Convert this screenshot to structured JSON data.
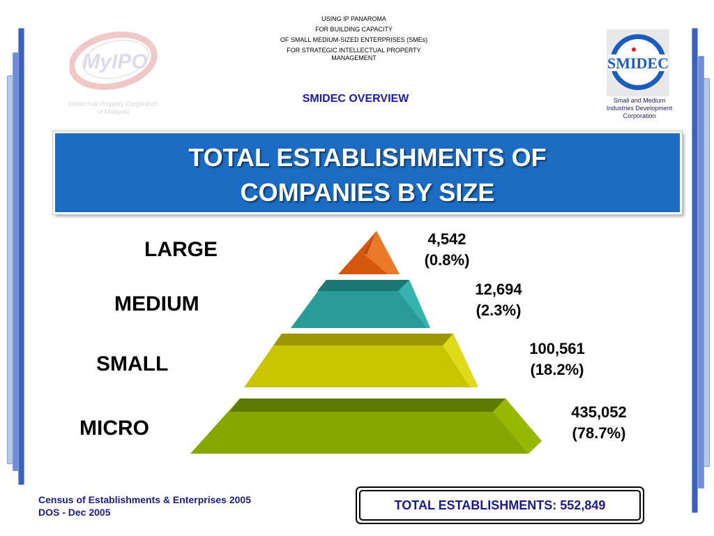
{
  "header": {
    "lines": [
      "USING IP PANAROMA",
      "FOR BUILDING CAPACITY",
      "OF SMALL MEDIUM-SIZED ENTERPRISES (SMEs)",
      "FOR STRATEGIC INTELLECTUAL PROPERTY MANAGEMENT"
    ],
    "section": "SMIDEC OVERVIEW"
  },
  "left_logo": {
    "wordmark": "MyIPO",
    "caption_line1": "Intellectual Property Corporation",
    "caption_line2": "of Malaysia"
  },
  "right_logo": {
    "wordmark": "SMIDEC",
    "caption_line1": "Small and Medium",
    "caption_line2": "Industries Development",
    "caption_line3": "Corporation"
  },
  "banner": {
    "title_line1": "TOTAL ESTABLISHMENTS OF",
    "title_line2": "COMPANIES BY SIZE"
  },
  "pyramid": {
    "tiers": [
      {
        "label": "LARGE",
        "count": "4,542",
        "percent": "(0.8%)",
        "value": 4542,
        "share": 0.8,
        "color": "#d4570d"
      },
      {
        "label": "MEDIUM",
        "count": "12,694",
        "percent": "(2.3%)",
        "value": 12694,
        "share": 2.3,
        "color": "#2a9a96"
      },
      {
        "label": "SMALL",
        "count": "100,561",
        "percent": "(18.2%)",
        "value": 100561,
        "share": 18.2,
        "color": "#c8c400"
      },
      {
        "label": "MICRO",
        "count": "435,052",
        "percent": "(78.7%)",
        "value": 435052,
        "share": 78.7,
        "color": "#86a600"
      }
    ]
  },
  "footer": {
    "source_line1": "Census of Establishments & Enterprises 2005",
    "source_line2": "DOS - Dec 2005",
    "total": "TOTAL ESTABLISHMENTS: 552,849"
  },
  "colors": {
    "banner": "#1b6cc2",
    "navy_text": "#1a1a88",
    "side_bar": "#3a62c4"
  }
}
